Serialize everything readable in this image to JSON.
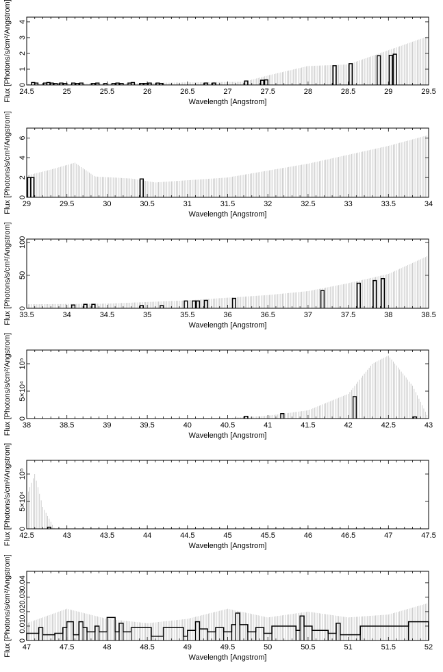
{
  "chart_data": [
    {
      "type": "histogram",
      "xlabel": "Wavelength [Angstrom]",
      "ylabel": "Flux [Photons/s/cm²/Angstrom]",
      "xlim": [
        24.5,
        29.5
      ],
      "ylim": [
        0,
        4.3
      ],
      "xticks": [
        24.5,
        25,
        25.5,
        26,
        26.5,
        27,
        27.5,
        28,
        28.5,
        29,
        29.5
      ],
      "yticks": [
        {
          "v": 0,
          "label": "0"
        },
        {
          "v": 1,
          "label": "1"
        },
        {
          "v": 2,
          "label": "2"
        },
        {
          "v": 3,
          "label": "3"
        },
        {
          "v": 4,
          "label": "4"
        }
      ],
      "bars": [
        [
          24.58,
          0.15
        ],
        [
          24.62,
          0.12
        ],
        [
          24.73,
          0.12
        ],
        [
          24.77,
          0.15
        ],
        [
          24.81,
          0.12
        ],
        [
          24.86,
          0.1
        ],
        [
          24.93,
          0.12
        ],
        [
          24.98,
          0.1
        ],
        [
          25.08,
          0.12
        ],
        [
          25.13,
          0.1
        ],
        [
          25.18,
          0.12
        ],
        [
          25.33,
          0.1
        ],
        [
          25.38,
          0.12
        ],
        [
          25.48,
          0.1
        ],
        [
          25.58,
          0.1
        ],
        [
          25.63,
          0.12
        ],
        [
          25.68,
          0.1
        ],
        [
          25.78,
          0.12
        ],
        [
          25.82,
          0.15
        ],
        [
          25.93,
          0.1
        ],
        [
          25.98,
          0.1
        ],
        [
          26.03,
          0.12
        ],
        [
          26.13,
          0.12
        ],
        [
          26.17,
          0.1
        ],
        [
          26.73,
          0.12
        ],
        [
          26.83,
          0.12
        ],
        [
          27.23,
          0.25
        ],
        [
          27.43,
          0.3
        ],
        [
          27.48,
          0.32
        ],
        [
          28.33,
          1.22
        ],
        [
          28.53,
          1.35
        ],
        [
          28.88,
          1.85
        ],
        [
          29.03,
          1.88
        ],
        [
          29.08,
          1.95
        ]
      ],
      "errorbars": {
        "start": 24.5,
        "end": 29.5,
        "step": 0.02,
        "pieces": [
          [
            24.5,
            0.05
          ],
          [
            27.2,
            0.2
          ],
          [
            27.5,
            0.6
          ],
          [
            28,
            1.2
          ],
          [
            28.5,
            1.3
          ],
          [
            29.0,
            2.2
          ],
          [
            29.5,
            3.1
          ]
        ]
      }
    },
    {
      "type": "histogram",
      "xlabel": "Wavelength [Angstrom]",
      "ylabel": "Flux [Photons/s/cm²/Angstrom]",
      "xlim": [
        29,
        34
      ],
      "ylim": [
        0,
        7
      ],
      "xticks": [
        29,
        29.5,
        30,
        30.5,
        31,
        31.5,
        32,
        32.5,
        33,
        33.5,
        34
      ],
      "yticks": [
        {
          "v": 0,
          "label": "0"
        },
        {
          "v": 2,
          "label": "2"
        },
        {
          "v": 4,
          "label": "4"
        },
        {
          "v": 6,
          "label": "6"
        }
      ],
      "bars": [
        [
          29.03,
          2.0
        ],
        [
          29.07,
          2.0
        ],
        [
          30.43,
          1.85
        ]
      ],
      "errorbars": {
        "start": 29.0,
        "end": 34.0,
        "step": 0.02,
        "pieces": [
          [
            29.0,
            2.2
          ],
          [
            29.3,
            2.8
          ],
          [
            29.6,
            3.5
          ],
          [
            29.85,
            2.1
          ],
          [
            30.3,
            1.9
          ],
          [
            30.6,
            1.5
          ],
          [
            31.5,
            2.0
          ],
          [
            32.5,
            3.4
          ],
          [
            33.5,
            5.2
          ],
          [
            34.0,
            6.3
          ]
        ]
      }
    },
    {
      "type": "histogram",
      "xlabel": "Wavelength [Angstrom]",
      "ylabel": "Flux [Photons/s/cm²/Angstrom]",
      "xlim": [
        33.5,
        38.5
      ],
      "ylim": [
        0,
        105
      ],
      "xticks": [
        33.5,
        34,
        34.5,
        35,
        35.5,
        36,
        36.5,
        37,
        37.5,
        38,
        38.5
      ],
      "yticks": [
        {
          "v": 0,
          "label": "0"
        },
        {
          "v": 50,
          "label": "50"
        },
        {
          "v": 100,
          "label": "100"
        }
      ],
      "bars": [
        [
          34.08,
          5
        ],
        [
          34.23,
          6
        ],
        [
          34.33,
          6
        ],
        [
          34.93,
          4
        ],
        [
          35.18,
          4
        ],
        [
          35.48,
          11
        ],
        [
          35.58,
          11
        ],
        [
          35.63,
          11
        ],
        [
          35.73,
          12
        ],
        [
          36.08,
          15
        ],
        [
          37.18,
          27
        ],
        [
          37.63,
          38
        ],
        [
          37.83,
          42
        ],
        [
          37.93,
          45
        ]
      ],
      "errorbars": {
        "start": 33.5,
        "end": 38.5,
        "step": 0.02,
        "pieces": [
          [
            33.5,
            6
          ],
          [
            34.5,
            7
          ],
          [
            35.5,
            12
          ],
          [
            36.5,
            20
          ],
          [
            37.0,
            26
          ],
          [
            37.5,
            38
          ],
          [
            38.0,
            52
          ],
          [
            38.5,
            80
          ]
        ]
      }
    },
    {
      "type": "histogram",
      "xlabel": "Wavelength [Angstrom]",
      "ylabel": "Flux [Photons/s/cm²/Angstrom]",
      "xlim": [
        38,
        43
      ],
      "ylim": [
        0,
        125000
      ],
      "xticks": [
        38,
        38.5,
        39,
        39.5,
        40,
        40.5,
        41,
        41.5,
        42,
        42.5,
        43
      ],
      "yticks": [
        {
          "v": 0,
          "label": "0"
        },
        {
          "v": 50000,
          "label": "5×10⁴"
        },
        {
          "v": 100000,
          "label": "10⁵"
        }
      ],
      "bars": [
        [
          40.73,
          4000
        ],
        [
          41.18,
          9000
        ],
        [
          42.08,
          40000
        ],
        [
          42.83,
          3000
        ]
      ],
      "errorbars": {
        "start": 38.0,
        "end": 43.0,
        "step": 0.02,
        "pieces": [
          [
            38.0,
            200
          ],
          [
            40.5,
            1000
          ],
          [
            41.0,
            5000
          ],
          [
            41.5,
            15000
          ],
          [
            42.0,
            45000
          ],
          [
            42.3,
            100000
          ],
          [
            42.5,
            115000
          ],
          [
            42.8,
            60000
          ],
          [
            43.0,
            500
          ]
        ]
      }
    },
    {
      "type": "histogram",
      "xlabel": "Wavelength [Angstrom]",
      "ylabel": "Flux [Photons/s/cm²/Angstrom]",
      "xlim": [
        42.5,
        47.5
      ],
      "ylim": [
        0,
        125000
      ],
      "xticks": [
        42.5,
        43,
        43.5,
        44,
        44.5,
        45,
        45.5,
        46,
        46.5,
        47,
        47.5
      ],
      "yticks": [
        {
          "v": 0,
          "label": "0"
        },
        {
          "v": 50000,
          "label": "5×10⁴"
        },
        {
          "v": 100000,
          "label": "10⁵"
        }
      ],
      "bars": [
        [
          42.78,
          3000
        ]
      ],
      "errorbars": {
        "start": 42.5,
        "end": 42.84,
        "step": 0.02,
        "pieces": [
          [
            42.5,
            60000
          ],
          [
            42.6,
            100000
          ],
          [
            42.7,
            40000
          ],
          [
            42.84,
            2000
          ]
        ]
      }
    },
    {
      "type": "histogram",
      "xlabel": "Wavelength [Angstrom]",
      "ylabel": "Flux [Photons/s/cm²/Angstrom]",
      "xlim": [
        47,
        52
      ],
      "ylim": [
        0,
        0.048
      ],
      "xticks": [
        47,
        47.5,
        48,
        48.5,
        49,
        49.5,
        50,
        50.5,
        51,
        51.5,
        52
      ],
      "yticks": [
        {
          "v": 0,
          "label": "0"
        },
        {
          "v": 0.01,
          "label": "0.01"
        },
        {
          "v": 0.02,
          "label": "0.02"
        },
        {
          "v": 0.03,
          "label": "0.03"
        },
        {
          "v": 0.04,
          "label": "0.04"
        }
      ],
      "profile": [
        [
          47.0,
          0.005
        ],
        [
          47.15,
          0.009
        ],
        [
          47.2,
          0.004
        ],
        [
          47.35,
          0.005
        ],
        [
          47.45,
          0.009
        ],
        [
          47.5,
          0.013
        ],
        [
          47.58,
          0.004
        ],
        [
          47.65,
          0.013
        ],
        [
          47.7,
          0.009
        ],
        [
          47.75,
          0.006
        ],
        [
          47.85,
          0.01
        ],
        [
          47.9,
          0.006
        ],
        [
          48.0,
          0.016
        ],
        [
          48.1,
          0.006
        ],
        [
          48.15,
          0.012
        ],
        [
          48.2,
          0.006
        ],
        [
          48.3,
          0.009
        ],
        [
          48.55,
          0.003
        ],
        [
          48.7,
          0.009
        ],
        [
          48.95,
          0.003
        ],
        [
          49.0,
          0.007
        ],
        [
          49.1,
          0.013
        ],
        [
          49.15,
          0.008
        ],
        [
          49.25,
          0.006
        ],
        [
          49.35,
          0.009
        ],
        [
          49.45,
          0.006
        ],
        [
          49.55,
          0.011
        ],
        [
          49.6,
          0.019
        ],
        [
          49.65,
          0.011
        ],
        [
          49.75,
          0.006
        ],
        [
          49.85,
          0.009
        ],
        [
          49.95,
          0.005
        ],
        [
          50.05,
          0.01
        ],
        [
          50.35,
          0.007
        ],
        [
          50.4,
          0.017
        ],
        [
          50.45,
          0.01
        ],
        [
          50.55,
          0.007
        ],
        [
          50.75,
          0.005
        ],
        [
          50.85,
          0.012
        ],
        [
          50.9,
          0.004
        ],
        [
          51.15,
          0.01
        ],
        [
          51.75,
          0.013
        ],
        [
          52.0,
          0.013
        ]
      ],
      "errorbars": {
        "start": 47.0,
        "end": 52.0,
        "step": 0.02,
        "pieces": [
          [
            47.0,
            0.012
          ],
          [
            47.5,
            0.022
          ],
          [
            48.0,
            0.015
          ],
          [
            48.5,
            0.012
          ],
          [
            49.0,
            0.015
          ],
          [
            49.5,
            0.022
          ],
          [
            50.0,
            0.016
          ],
          [
            50.5,
            0.02
          ],
          [
            51.0,
            0.016
          ],
          [
            51.5,
            0.018
          ],
          [
            52.0,
            0.026
          ]
        ]
      }
    }
  ]
}
